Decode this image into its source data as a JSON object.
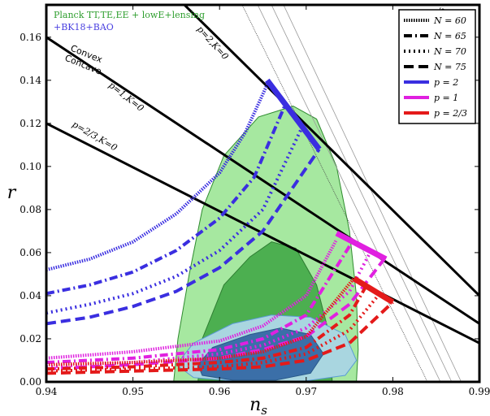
{
  "chart_data": {
    "type": "line",
    "xlabel": "n_s",
    "ylabel": "r",
    "xlim": [
      0.94,
      0.99
    ],
    "ylim": [
      0.0,
      0.175
    ],
    "grid": false,
    "legend_position": "top-right",
    "x_ticks": [
      "0.94",
      "0.95",
      "0.96",
      "0.97",
      "0.98",
      "0.99"
    ],
    "y_ticks": [
      "0.00",
      "0.02",
      "0.04",
      "0.06",
      "0.08",
      "0.10",
      "0.12",
      "0.14",
      "0.16"
    ],
    "dataset_labels": [
      "Planck TT,TE,EE + lowE+lensing",
      "+BK18+BAO"
    ],
    "contours": [
      {
        "label": "Planck TT,TE,EE + lowE+lensing 95%",
        "color": "#a6e8a0",
        "edge": "#2e8b2e",
        "points": [
          [
            0.9547,
            0
          ],
          [
            0.9552,
            0.02
          ],
          [
            0.9565,
            0.05
          ],
          [
            0.958,
            0.08
          ],
          [
            0.9605,
            0.105
          ],
          [
            0.9645,
            0.123
          ],
          [
            0.9685,
            0.128
          ],
          [
            0.9712,
            0.122
          ],
          [
            0.9735,
            0.1
          ],
          [
            0.975,
            0.07
          ],
          [
            0.9758,
            0.04
          ],
          [
            0.976,
            0.015
          ],
          [
            0.9758,
            0
          ]
        ]
      },
      {
        "label": "Planck TT,TE,EE + lowE+lensing 68%",
        "color": "#4caf50",
        "edge": "#2e7d32",
        "points": [
          [
            0.9575,
            0
          ],
          [
            0.958,
            0.02
          ],
          [
            0.9605,
            0.045
          ],
          [
            0.9635,
            0.058
          ],
          [
            0.966,
            0.065
          ],
          [
            0.9688,
            0.062
          ],
          [
            0.9712,
            0.045
          ],
          [
            0.9728,
            0.02
          ],
          [
            0.973,
            0
          ]
        ]
      },
      {
        "label": "+BK18+BAO 95%",
        "color": "#a9d6e0",
        "edge": "#5a9bd5",
        "points": [
          [
            0.955,
            0.008
          ],
          [
            0.957,
            0.018
          ],
          [
            0.9615,
            0.027
          ],
          [
            0.966,
            0.031
          ],
          [
            0.9705,
            0.03
          ],
          [
            0.9745,
            0.022
          ],
          [
            0.9758,
            0.01
          ],
          [
            0.9745,
            0.003
          ],
          [
            0.97,
            0.0005
          ],
          [
            0.963,
            0
          ],
          [
            0.957,
            0.002
          ]
        ]
      },
      {
        "label": "+BK18+BAO 68%",
        "color": "#3b6fa8",
        "edge": "#2a5a8a",
        "points": [
          [
            0.9575,
            0.008
          ],
          [
            0.9592,
            0.016
          ],
          [
            0.9635,
            0.022
          ],
          [
            0.967,
            0.025
          ],
          [
            0.9705,
            0.022
          ],
          [
            0.972,
            0.013
          ],
          [
            0.9705,
            0.004
          ],
          [
            0.9665,
            0.0008
          ],
          [
            0.9615,
            0.0008
          ],
          [
            0.958,
            0.003
          ]
        ]
      }
    ],
    "series": [
      {
        "name": "p=2",
        "color": "#3a2ee0",
        "values": [
          {
            "N": 60,
            "dash": "1.5,1.5",
            "width": 4,
            "x": [
              0.94,
              0.945,
              0.95,
              0.955,
              0.96,
              0.963,
              0.9655
            ],
            "y": [
              0.052,
              0.057,
              0.065,
              0.078,
              0.097,
              0.116,
              0.138
            ]
          },
          {
            "N": 65,
            "dash": "10,4,2,4",
            "width": 4,
            "x": [
              0.94,
              0.945,
              0.95,
              0.955,
              0.96,
              0.964,
              0.9675
            ],
            "y": [
              0.041,
              0.045,
              0.051,
              0.061,
              0.076,
              0.095,
              0.128
            ]
          },
          {
            "N": 70,
            "dash": "2,4",
            "width": 4,
            "x": [
              0.94,
              0.945,
              0.95,
              0.955,
              0.96,
              0.965,
              0.9695
            ],
            "y": [
              0.032,
              0.036,
              0.041,
              0.049,
              0.061,
              0.08,
              0.118
            ]
          },
          {
            "N": 75,
            "dash": "12,6",
            "width": 4,
            "x": [
              0.94,
              0.945,
              0.95,
              0.955,
              0.96,
              0.965,
              0.9715
            ],
            "y": [
              0.027,
              0.03,
              0.035,
              0.042,
              0.053,
              0.07,
              0.108
            ]
          }
        ]
      },
      {
        "name": "p=1",
        "color": "#e020e0",
        "values": [
          {
            "N": 60,
            "dash": "1.5,1.5",
            "width": 4,
            "x": [
              0.94,
              0.95,
              0.96,
              0.965,
              0.97,
              0.9735
            ],
            "y": [
              0.011,
              0.014,
              0.019,
              0.026,
              0.04,
              0.066
            ]
          },
          {
            "N": 65,
            "dash": "10,4,2,4",
            "width": 4,
            "x": [
              0.94,
              0.95,
              0.96,
              0.965,
              0.97,
              0.975
            ],
            "y": [
              0.009,
              0.011,
              0.015,
              0.02,
              0.031,
              0.063
            ]
          },
          {
            "N": 70,
            "dash": "2,4",
            "width": 4,
            "x": [
              0.94,
              0.95,
              0.96,
              0.965,
              0.97,
              0.975,
              0.9775
            ],
            "y": [
              0.007,
              0.009,
              0.013,
              0.017,
              0.025,
              0.042,
              0.061
            ]
          },
          {
            "N": 75,
            "dash": "12,6",
            "width": 4,
            "x": [
              0.94,
              0.95,
              0.96,
              0.965,
              0.97,
              0.975,
              0.979
            ],
            "y": [
              0.006,
              0.008,
              0.011,
              0.015,
              0.021,
              0.036,
              0.057
            ]
          }
        ]
      },
      {
        "name": "p=2/3",
        "color": "#e41a1a",
        "values": [
          {
            "N": 60,
            "dash": "1.5,1.5",
            "width": 4,
            "x": [
              0.94,
              0.95,
              0.96,
              0.965,
              0.97,
              0.9755
            ],
            "y": [
              0.008,
              0.009,
              0.011,
              0.014,
              0.021,
              0.048
            ]
          },
          {
            "N": 65,
            "dash": "10,4,2,4",
            "width": 4,
            "x": [
              0.94,
              0.95,
              0.96,
              0.965,
              0.97,
              0.975,
              0.977
            ],
            "y": [
              0.006,
              0.007,
              0.009,
              0.011,
              0.016,
              0.031,
              0.045
            ]
          },
          {
            "N": 70,
            "dash": "2,4",
            "width": 4,
            "x": [
              0.94,
              0.95,
              0.96,
              0.965,
              0.97,
              0.975,
              0.9785
            ],
            "y": [
              0.005,
              0.006,
              0.007,
              0.009,
              0.013,
              0.024,
              0.041
            ]
          },
          {
            "N": 75,
            "dash": "12,6",
            "width": 4,
            "x": [
              0.94,
              0.95,
              0.96,
              0.965,
              0.97,
              0.975,
              0.98
            ],
            "y": [
              0.004,
              0.005,
              0.006,
              0.007,
              0.01,
              0.018,
              0.037
            ]
          }
        ]
      }
    ],
    "segments": [
      {
        "name": "p=2",
        "color": "#3a2ee0",
        "x": [
          0.9655,
          0.9715
        ],
        "y": [
          0.14,
          0.108
        ]
      },
      {
        "name": "p=1",
        "color": "#e020e0",
        "x": [
          0.9735,
          0.9792
        ],
        "y": [
          0.069,
          0.057
        ]
      },
      {
        "name": "p=2/3",
        "color": "#e41a1a",
        "x": [
          0.9755,
          0.98
        ],
        "y": [
          0.048,
          0.037
        ]
      }
    ],
    "reference_lines": [
      {
        "label": "p=2,K=0",
        "x": [
          0.9345,
          0.99
        ],
        "y": [
          0.26,
          0.04
        ]
      },
      {
        "label": "p=1,K=0",
        "x": [
          0.94,
          0.99
        ],
        "y": [
          0.16,
          0.027
        ]
      },
      {
        "label": "p=2/3,K=0",
        "x": [
          0.94,
          0.99
        ],
        "y": [
          0.12,
          0.018
        ]
      }
    ],
    "N_lines": [
      {
        "label": "N=60",
        "x": [
          0.962,
          0.984
        ],
        "y": [
          0.18,
          0.0
        ]
      },
      {
        "label": "N=65",
        "x": [
          0.9638,
          0.9855
        ],
        "y": [
          0.18,
          0.0
        ]
      },
      {
        "label": "N=70",
        "x": [
          0.9654,
          0.9868
        ],
        "y": [
          0.18,
          0.0
        ]
      },
      {
        "label": "N=75",
        "x": [
          0.9668,
          0.9879
        ],
        "y": [
          0.18,
          0.0
        ]
      }
    ],
    "annotations": [
      "Convex",
      "Concave",
      "p=2,K=0",
      "p=1,K=0",
      "p=2/3,K=0",
      "N=60",
      "N=65",
      "N=70",
      "N=75"
    ],
    "legend": [
      {
        "label": "N = 60",
        "dash": "1.5,1.5",
        "color": "#000000"
      },
      {
        "label": "N = 65",
        "dash": "10,4,2,4",
        "color": "#000000"
      },
      {
        "label": "N = 70",
        "dash": "2,4",
        "color": "#000000"
      },
      {
        "label": "N = 75",
        "dash": "12,6",
        "color": "#000000"
      },
      {
        "label": "p = 2",
        "dash": "",
        "color": "#3a2ee0"
      },
      {
        "label": "p = 1",
        "dash": "",
        "color": "#e020e0"
      },
      {
        "label": "p = 2/3",
        "dash": "",
        "color": "#e41a1a"
      }
    ]
  }
}
